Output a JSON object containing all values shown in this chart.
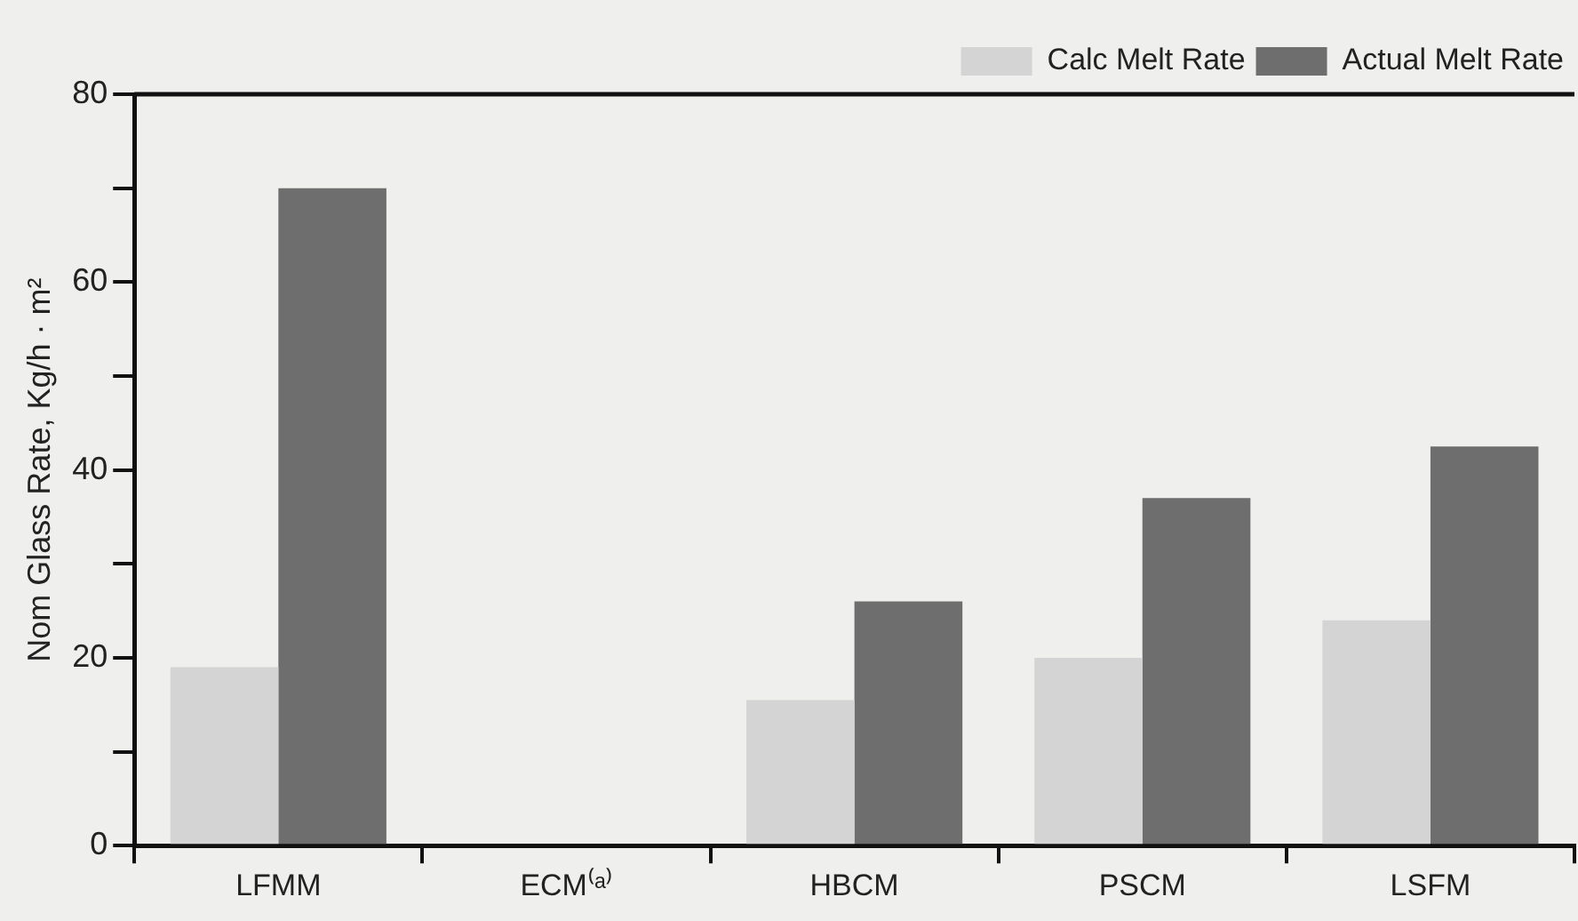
{
  "chart_data": {
    "type": "bar",
    "categories": [
      "LFMM",
      "ECM⁽ᵃ⁾",
      "HBCM",
      "PSCM",
      "LSFM"
    ],
    "ylabel": "Nom Glass Rate, Kg/h · m²",
    "series": [
      {
        "name": "Calc Melt Rate",
        "color": "#d4d4d4",
        "values": [
          19,
          null,
          15.5,
          20,
          24
        ]
      },
      {
        "name": "Actual Melt Rate",
        "color": "#6e6e6e",
        "values": [
          70,
          null,
          26,
          37,
          42.5
        ]
      }
    ],
    "ylim": [
      0,
      80
    ],
    "yticks": [
      0,
      {
        "value": 10,
        "label": null
      },
      20,
      {
        "value": 30,
        "label": null
      },
      40,
      {
        "value": 50,
        "label": null
      },
      60,
      {
        "value": 70,
        "label": null
      },
      80
    ],
    "grid": false,
    "legend": "top right"
  }
}
